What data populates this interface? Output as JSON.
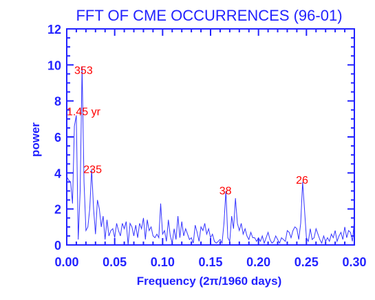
{
  "chart_data": {
    "type": "line",
    "title": "FFT OF CME OCCURRENCES (96-01)",
    "xlabel": "Frequency (2π/1960 days)",
    "ylabel": "power",
    "xlim": [
      0.0,
      0.3
    ],
    "ylim": [
      0,
      12
    ],
    "xticks": [
      "0.00",
      "0.05",
      "0.10",
      "0.15",
      "0.20",
      "0.25",
      "0.30"
    ],
    "yticks": [
      "0",
      "2",
      "4",
      "6",
      "8",
      "10",
      "12"
    ],
    "grid": false,
    "colors": {
      "axis": "#2222ff",
      "series": "#3333ff",
      "annotation": "#ff0000"
    },
    "series": [
      {
        "x": [
          0.0,
          0.002,
          0.004,
          0.006,
          0.008,
          0.01,
          0.012,
          0.014,
          0.016,
          0.018,
          0.02,
          0.022,
          0.024,
          0.026,
          0.028,
          0.03,
          0.032,
          0.034,
          0.036,
          0.038,
          0.04,
          0.042,
          0.044,
          0.046,
          0.048,
          0.05,
          0.052,
          0.054,
          0.056,
          0.058,
          0.06,
          0.062,
          0.064,
          0.066,
          0.068,
          0.07,
          0.072,
          0.074,
          0.076,
          0.078,
          0.08,
          0.082,
          0.084,
          0.086,
          0.088,
          0.09,
          0.092,
          0.094,
          0.096,
          0.098,
          0.1,
          0.102,
          0.104,
          0.106,
          0.108,
          0.11,
          0.112,
          0.114,
          0.116,
          0.118,
          0.12,
          0.122,
          0.124,
          0.126,
          0.128,
          0.13,
          0.132,
          0.134,
          0.136,
          0.138,
          0.14,
          0.142,
          0.144,
          0.146,
          0.148,
          0.15,
          0.152,
          0.154,
          0.156,
          0.158,
          0.16,
          0.162,
          0.164,
          0.166,
          0.168,
          0.17,
          0.172,
          0.174,
          0.176,
          0.178,
          0.18,
          0.182,
          0.184,
          0.186,
          0.188,
          0.19,
          0.192,
          0.194,
          0.196,
          0.198,
          0.2,
          0.202,
          0.204,
          0.206,
          0.208,
          0.21,
          0.212,
          0.214,
          0.216,
          0.218,
          0.22,
          0.222,
          0.224,
          0.226,
          0.228,
          0.23,
          0.232,
          0.234,
          0.236,
          0.238,
          0.24,
          0.242,
          0.244,
          0.246,
          0.248,
          0.25,
          0.252,
          0.254,
          0.256,
          0.258,
          0.26,
          0.262,
          0.264,
          0.266,
          0.268,
          0.27,
          0.272,
          0.274,
          0.276,
          0.278,
          0.28,
          0.282,
          0.284,
          0.286,
          0.288,
          0.29,
          0.292,
          0.294,
          0.296,
          0.298,
          0.3
        ],
        "values": [
          3.8,
          3.6,
          3.5,
          2.3,
          6.6,
          7.2,
          0.3,
          3.0,
          9.9,
          3.5,
          0.8,
          1.0,
          2.0,
          4.2,
          2.0,
          0.6,
          2.5,
          2.0,
          1.0,
          1.6,
          0.3,
          1.4,
          0.5,
          0.8,
          0.9,
          0.4,
          1.2,
          0.8,
          0.5,
          1.2,
          0.9,
          1.3,
          0.0,
          1.2,
          1.0,
          0.5,
          1.1,
          0.4,
          1.2,
          0.9,
          1.5,
          0.3,
          1.4,
          0.8,
          1.0,
          0.5,
          0.4,
          0.6,
          0.4,
          2.3,
          0.6,
          0.8,
          0.2,
          1.4,
          0.5,
          0.1,
          0.9,
          0.3,
          1.6,
          0.4,
          1.3,
          0.5,
          0.9,
          0.6,
          0.3,
          0.4,
          0.1,
          1.1,
          0.7,
          0.2,
          1.0,
          0.8,
          1.2,
          0.6,
          0.9,
          0.4,
          0.6,
          0.2,
          0.1,
          0.2,
          0.3,
          0.1,
          1.2,
          3.0,
          0.4,
          0.2,
          1.6,
          0.9,
          2.6,
          1.2,
          0.8,
          1.2,
          0.6,
          0.9,
          0.5,
          0.3,
          0.7,
          0.4,
          0.4,
          0.2,
          0.4,
          0.2,
          0.5,
          0.1,
          0.4,
          0.7,
          0.3,
          0.1,
          0.2,
          0.5,
          0.3,
          0.1,
          0.4,
          0.3,
          0.2,
          0.8,
          0.7,
          0.4,
          0.8,
          1.0,
          0.9,
          0.3,
          1.2,
          3.5,
          2.0,
          0.4,
          0.2,
          0.9,
          0.3,
          0.4,
          0.9,
          0.6,
          0.3,
          0.1,
          0.5,
          0.2,
          0.4,
          0.2,
          0.6,
          0.4,
          0.8,
          0.2,
          0.5,
          0.7,
          0.3,
          1.0,
          0.4,
          0.8,
          0.7,
          0.2,
          1.4
        ]
      }
    ],
    "annotations": [
      {
        "text": "353",
        "x": 0.0175,
        "y": 9.5
      },
      {
        "text": "1.45 yr",
        "x": 0.0,
        "y": 7.2
      },
      {
        "text": "235",
        "x": 0.027,
        "y": 4.0
      },
      {
        "text": "38",
        "x": 0.1655,
        "y": 2.8
      },
      {
        "text": "26",
        "x": 0.2455,
        "y": 3.4
      }
    ]
  }
}
